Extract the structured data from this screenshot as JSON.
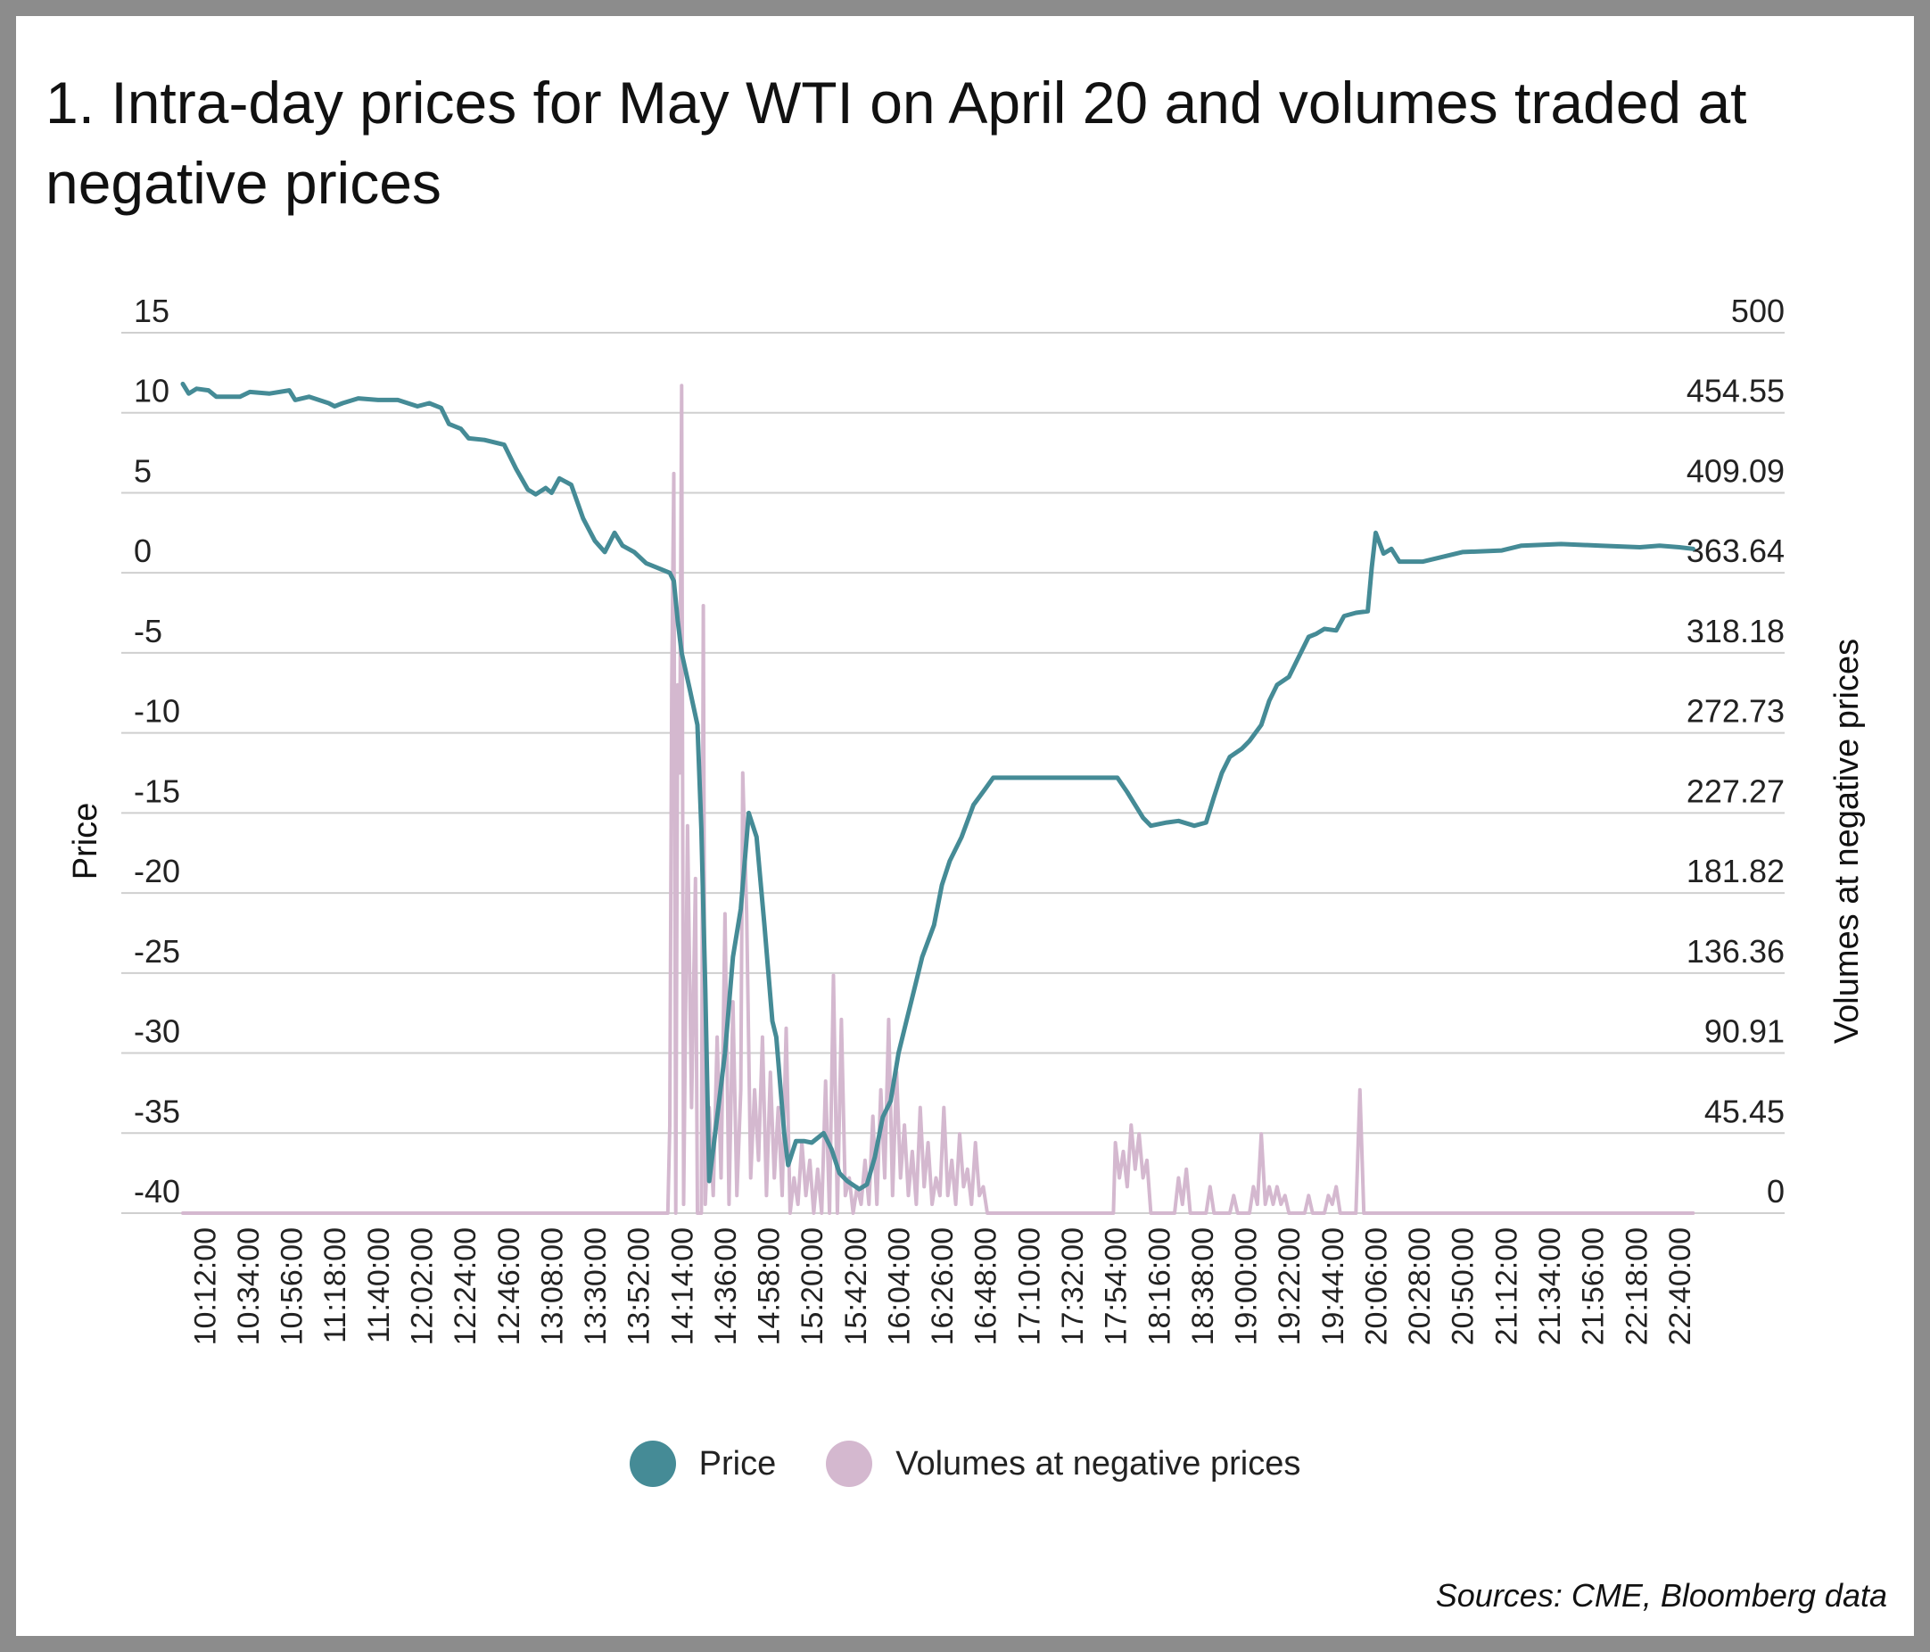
{
  "title": "1. Intra-day prices for May WTI on April 20 and volumes traded at negative prices",
  "source": "Sources: CME, Bloomberg data",
  "chart_data": {
    "type": "line",
    "title": "1. Intra-day prices for May WTI on April 20 and volumes traded at negative prices",
    "ylabel": "Price",
    "y2label": "Volumes at negative prices",
    "ylim": [
      -40,
      15
    ],
    "y2lim": [
      0,
      500
    ],
    "yticks": [
      "15",
      "10",
      "5",
      "0",
      "-5",
      "-10",
      "-15",
      "-20",
      "-25",
      "-30",
      "-35",
      "-40"
    ],
    "y2ticks": [
      "500",
      "454.55",
      "409.09",
      "363.64",
      "318.18",
      "272.73",
      "227.27",
      "181.82",
      "136.36",
      "90.91",
      "45.45",
      "0"
    ],
    "x_start": "10:01:00",
    "x_end": "22:50:00",
    "xticks": [
      "10:12:00",
      "10:34:00",
      "10:56:00",
      "11:18:00",
      "11:40:00",
      "12:02:00",
      "12:24:00",
      "12:46:00",
      "13:08:00",
      "13:30:00",
      "13:52:00",
      "14:14:00",
      "14:36:00",
      "14:58:00",
      "15:20:00",
      "15:42:00",
      "16:04:00",
      "16:26:00",
      "16:48:00",
      "17:10:00",
      "17:32:00",
      "17:54:00",
      "18:16:00",
      "18:38:00",
      "19:00:00",
      "19:22:00",
      "19:44:00",
      "20:06:00",
      "20:28:00",
      "20:50:00",
      "21:12:00",
      "21:34:00",
      "21:56:00",
      "22:18:00",
      "22:40:00"
    ],
    "grid": true,
    "legend_position": "bottom",
    "series": [
      {
        "name": "Price",
        "axis": "left",
        "color": "#458b96",
        "points": [
          [
            "10:01",
            11.8
          ],
          [
            "10:04",
            11.2
          ],
          [
            "10:08",
            11.5
          ],
          [
            "10:14",
            11.4
          ],
          [
            "10:18",
            11.0
          ],
          [
            "10:30",
            11.0
          ],
          [
            "10:35",
            11.3
          ],
          [
            "10:45",
            11.2
          ],
          [
            "10:55",
            11.4
          ],
          [
            "10:58",
            10.8
          ],
          [
            "11:05",
            11.0
          ],
          [
            "11:15",
            10.6
          ],
          [
            "11:18",
            10.4
          ],
          [
            "11:22",
            10.6
          ],
          [
            "11:30",
            10.9
          ],
          [
            "11:40",
            10.8
          ],
          [
            "11:50",
            10.8
          ],
          [
            "12:00",
            10.4
          ],
          [
            "12:06",
            10.6
          ],
          [
            "12:12",
            10.3
          ],
          [
            "12:16",
            9.3
          ],
          [
            "12:22",
            9.0
          ],
          [
            "12:26",
            8.4
          ],
          [
            "12:34",
            8.3
          ],
          [
            "12:44",
            8.0
          ],
          [
            "12:50",
            6.5
          ],
          [
            "12:56",
            5.2
          ],
          [
            "13:00",
            4.9
          ],
          [
            "13:05",
            5.3
          ],
          [
            "13:08",
            5.0
          ],
          [
            "13:12",
            5.9
          ],
          [
            "13:18",
            5.5
          ],
          [
            "13:24",
            3.4
          ],
          [
            "13:30",
            2.0
          ],
          [
            "13:35",
            1.3
          ],
          [
            "13:40",
            2.5
          ],
          [
            "13:44",
            1.7
          ],
          [
            "13:50",
            1.3
          ],
          [
            "13:56",
            0.6
          ],
          [
            "14:02",
            0.3
          ],
          [
            "14:08",
            0.0
          ],
          [
            "14:10",
            -0.5
          ],
          [
            "14:12",
            -3.0
          ],
          [
            "14:14",
            -5.0
          ],
          [
            "14:18",
            -7.2
          ],
          [
            "14:22",
            -9.5
          ],
          [
            "14:24",
            -16.0
          ],
          [
            "14:26",
            -26.0
          ],
          [
            "14:28",
            -38.0
          ],
          [
            "14:30",
            -36.0
          ],
          [
            "14:36",
            -30.0
          ],
          [
            "14:40",
            -24.0
          ],
          [
            "14:44",
            -21.0
          ],
          [
            "14:48",
            -15.0
          ],
          [
            "14:52",
            -16.5
          ],
          [
            "14:56",
            -22.0
          ],
          [
            "15:00",
            -28.0
          ],
          [
            "15:02",
            -29.0
          ],
          [
            "15:06",
            -35.0
          ],
          [
            "15:08",
            -37.0
          ],
          [
            "15:12",
            -35.5
          ],
          [
            "15:16",
            -35.5
          ],
          [
            "15:20",
            -35.6
          ],
          [
            "15:26",
            -35.0
          ],
          [
            "15:30",
            -36.0
          ],
          [
            "15:34",
            -37.5
          ],
          [
            "15:38",
            -38.0
          ],
          [
            "15:44",
            -38.5
          ],
          [
            "15:48",
            -38.2
          ],
          [
            "15:52",
            -36.5
          ],
          [
            "15:56",
            -34.0
          ],
          [
            "16:00",
            -33.0
          ],
          [
            "16:04",
            -30.0
          ],
          [
            "16:08",
            -28.0
          ],
          [
            "16:12",
            -26.0
          ],
          [
            "16:16",
            -24.0
          ],
          [
            "16:22",
            -22.0
          ],
          [
            "16:26",
            -19.5
          ],
          [
            "16:30",
            -18.0
          ],
          [
            "16:36",
            -16.5
          ],
          [
            "16:42",
            -14.5
          ],
          [
            "16:48",
            -13.5
          ],
          [
            "16:52",
            -12.8
          ],
          [
            "17:30",
            -12.8
          ],
          [
            "17:55",
            -12.8
          ],
          [
            "18:00",
            -13.7
          ],
          [
            "18:04",
            -14.5
          ],
          [
            "18:08",
            -15.3
          ],
          [
            "18:12",
            -15.8
          ],
          [
            "18:20",
            -15.6
          ],
          [
            "18:26",
            -15.5
          ],
          [
            "18:34",
            -15.8
          ],
          [
            "18:40",
            -15.6
          ],
          [
            "18:44",
            -14.0
          ],
          [
            "18:48",
            -12.5
          ],
          [
            "18:52",
            -11.5
          ],
          [
            "18:58",
            -11.0
          ],
          [
            "19:02",
            -10.5
          ],
          [
            "19:08",
            -9.5
          ],
          [
            "19:12",
            -8.0
          ],
          [
            "19:16",
            -7.0
          ],
          [
            "19:22",
            -6.5
          ],
          [
            "19:26",
            -5.5
          ],
          [
            "19:32",
            -4.0
          ],
          [
            "19:36",
            -3.8
          ],
          [
            "19:40",
            -3.5
          ],
          [
            "19:46",
            -3.6
          ],
          [
            "19:50",
            -2.7
          ],
          [
            "19:56",
            -2.5
          ],
          [
            "20:02",
            -2.4
          ],
          [
            "20:04",
            0.3
          ],
          [
            "20:06",
            2.5
          ],
          [
            "20:10",
            1.2
          ],
          [
            "20:14",
            1.5
          ],
          [
            "20:18",
            0.7
          ],
          [
            "20:30",
            0.7
          ],
          [
            "20:50",
            1.3
          ],
          [
            "21:10",
            1.4
          ],
          [
            "21:20",
            1.7
          ],
          [
            "21:40",
            1.8
          ],
          [
            "22:00",
            1.7
          ],
          [
            "22:20",
            1.6
          ],
          [
            "22:30",
            1.7
          ],
          [
            "22:40",
            1.6
          ],
          [
            "22:47",
            1.5
          ]
        ]
      },
      {
        "name": "Volumes at negative prices",
        "axis": "right",
        "color": "#d4b8cf",
        "points": [
          [
            "10:01",
            0
          ],
          [
            "14:07",
            0
          ],
          [
            "14:08",
            50
          ],
          [
            "14:09",
            300
          ],
          [
            "14:10",
            420
          ],
          [
            "14:11",
            0
          ],
          [
            "14:12",
            300
          ],
          [
            "14:13",
            250
          ],
          [
            "14:14",
            470
          ],
          [
            "14:15",
            5
          ],
          [
            "14:17",
            220
          ],
          [
            "14:19",
            60
          ],
          [
            "14:21",
            190
          ],
          [
            "14:22",
            0
          ],
          [
            "14:24",
            0
          ],
          [
            "14:25",
            345
          ],
          [
            "14:26",
            5
          ],
          [
            "14:28",
            60
          ],
          [
            "14:30",
            10
          ],
          [
            "14:32",
            100
          ],
          [
            "14:34",
            20
          ],
          [
            "14:36",
            170
          ],
          [
            "14:38",
            5
          ],
          [
            "14:40",
            120
          ],
          [
            "14:42",
            10
          ],
          [
            "14:44",
            70
          ],
          [
            "14:45",
            250
          ],
          [
            "14:47",
            170
          ],
          [
            "14:49",
            20
          ],
          [
            "14:51",
            70
          ],
          [
            "14:53",
            30
          ],
          [
            "14:55",
            100
          ],
          [
            "14:57",
            10
          ],
          [
            "14:59",
            80
          ],
          [
            "15:01",
            20
          ],
          [
            "15:03",
            60
          ],
          [
            "15:05",
            10
          ],
          [
            "15:07",
            105
          ],
          [
            "15:09",
            0
          ],
          [
            "15:11",
            20
          ],
          [
            "15:13",
            5
          ],
          [
            "15:15",
            40
          ],
          [
            "15:17",
            10
          ],
          [
            "15:19",
            30
          ],
          [
            "15:21",
            0
          ],
          [
            "15:23",
            25
          ],
          [
            "15:25",
            0
          ],
          [
            "15:27",
            75
          ],
          [
            "15:29",
            0
          ],
          [
            "15:31",
            135
          ],
          [
            "15:33",
            0
          ],
          [
            "15:35",
            110
          ],
          [
            "15:37",
            10
          ],
          [
            "15:39",
            20
          ],
          [
            "15:41",
            0
          ],
          [
            "15:43",
            15
          ],
          [
            "15:45",
            5
          ],
          [
            "15:47",
            30
          ],
          [
            "15:49",
            5
          ],
          [
            "15:51",
            55
          ],
          [
            "15:53",
            5
          ],
          [
            "15:55",
            70
          ],
          [
            "15:57",
            20
          ],
          [
            "15:59",
            110
          ],
          [
            "16:01",
            10
          ],
          [
            "16:03",
            80
          ],
          [
            "16:05",
            20
          ],
          [
            "16:07",
            50
          ],
          [
            "16:09",
            10
          ],
          [
            "16:11",
            35
          ],
          [
            "16:13",
            5
          ],
          [
            "16:15",
            60
          ],
          [
            "16:17",
            15
          ],
          [
            "16:19",
            40
          ],
          [
            "16:21",
            5
          ],
          [
            "16:23",
            20
          ],
          [
            "16:25",
            10
          ],
          [
            "16:27",
            60
          ],
          [
            "16:29",
            10
          ],
          [
            "16:31",
            30
          ],
          [
            "16:33",
            5
          ],
          [
            "16:35",
            45
          ],
          [
            "16:37",
            15
          ],
          [
            "16:39",
            25
          ],
          [
            "16:41",
            5
          ],
          [
            "16:43",
            40
          ],
          [
            "16:45",
            10
          ],
          [
            "16:47",
            15
          ],
          [
            "16:49",
            0
          ],
          [
            "17:53",
            0
          ],
          [
            "17:54",
            40
          ],
          [
            "17:56",
            20
          ],
          [
            "17:58",
            35
          ],
          [
            "18:00",
            15
          ],
          [
            "18:02",
            50
          ],
          [
            "18:04",
            25
          ],
          [
            "18:06",
            45
          ],
          [
            "18:08",
            20
          ],
          [
            "18:10",
            30
          ],
          [
            "18:12",
            0
          ],
          [
            "18:24",
            0
          ],
          [
            "18:26",
            20
          ],
          [
            "18:28",
            5
          ],
          [
            "18:30",
            25
          ],
          [
            "18:32",
            0
          ],
          [
            "18:40",
            0
          ],
          [
            "18:42",
            15
          ],
          [
            "18:44",
            0
          ],
          [
            "18:52",
            0
          ],
          [
            "18:54",
            10
          ],
          [
            "18:56",
            0
          ],
          [
            "19:02",
            0
          ],
          [
            "19:04",
            15
          ],
          [
            "19:06",
            5
          ],
          [
            "19:08",
            45
          ],
          [
            "19:10",
            5
          ],
          [
            "19:12",
            15
          ],
          [
            "19:14",
            5
          ],
          [
            "19:16",
            15
          ],
          [
            "19:18",
            5
          ],
          [
            "19:20",
            10
          ],
          [
            "19:22",
            0
          ],
          [
            "19:30",
            0
          ],
          [
            "19:32",
            10
          ],
          [
            "19:34",
            0
          ],
          [
            "19:40",
            0
          ],
          [
            "19:42",
            10
          ],
          [
            "19:44",
            5
          ],
          [
            "19:46",
            15
          ],
          [
            "19:48",
            0
          ],
          [
            "19:56",
            0
          ],
          [
            "19:58",
            70
          ],
          [
            "20:00",
            0
          ],
          [
            "22:47",
            0
          ]
        ]
      }
    ]
  }
}
